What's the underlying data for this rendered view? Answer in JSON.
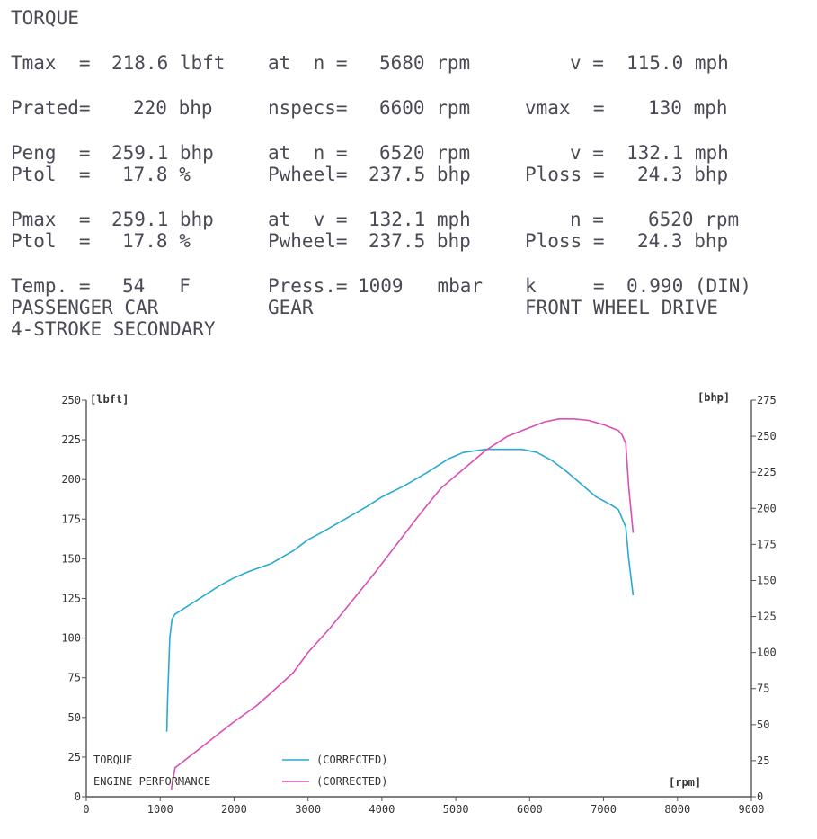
{
  "header": {
    "title": "TORQUE",
    "rows": [
      [
        {
          "id": "tmax-label",
          "text": "Tmax  =",
          "x": 12,
          "y": 58
        },
        {
          "id": "tmax-value",
          "text": "218.6 lbft",
          "x": 124,
          "y": 58
        },
        {
          "id": "tmax-at-n-label",
          "text": "at  n =",
          "x": 298,
          "y": 58
        },
        {
          "id": "tmax-n-value",
          "text": "5680 rpm",
          "x": 422,
          "y": 58
        },
        {
          "id": "tmax-v-label",
          "text": "v =",
          "x": 634,
          "y": 58
        },
        {
          "id": "tmax-v-value",
          "text": "115.0 mph",
          "x": 697,
          "y": 58
        }
      ],
      [
        {
          "id": "prated-label",
          "text": "Prated=",
          "x": 12,
          "y": 108
        },
        {
          "id": "prated-value",
          "text": "220 bhp",
          "x": 148,
          "y": 108
        },
        {
          "id": "nspecs-label",
          "text": "nspecs=",
          "x": 298,
          "y": 108
        },
        {
          "id": "nspecs-value",
          "text": "6600 rpm",
          "x": 422,
          "y": 108
        },
        {
          "id": "vmax-label",
          "text": "vmax  =",
          "x": 584,
          "y": 108
        },
        {
          "id": "vmax-value",
          "text": "130 mph",
          "x": 721,
          "y": 108
        }
      ],
      [
        {
          "id": "peng-label",
          "text": "Peng  =",
          "x": 12,
          "y": 158
        },
        {
          "id": "peng-value",
          "text": "259.1 bhp",
          "x": 124,
          "y": 158
        },
        {
          "id": "peng-at-n-label",
          "text": "at  n =",
          "x": 298,
          "y": 158
        },
        {
          "id": "peng-n-value",
          "text": "6520 rpm",
          "x": 422,
          "y": 158
        },
        {
          "id": "peng-v-label",
          "text": "v =",
          "x": 634,
          "y": 158
        },
        {
          "id": "peng-v-value",
          "text": "132.1 mph",
          "x": 697,
          "y": 158
        }
      ],
      [
        {
          "id": "ptol1-label",
          "text": "Ptol  =",
          "x": 12,
          "y": 182
        },
        {
          "id": "ptol1-value",
          "text": "17.8 %",
          "x": 136,
          "y": 182
        },
        {
          "id": "pwheel1-label",
          "text": "Pwheel=",
          "x": 298,
          "y": 182
        },
        {
          "id": "pwheel1-value",
          "text": "237.5 bhp",
          "x": 410,
          "y": 182
        },
        {
          "id": "ploss1-label",
          "text": "Ploss =",
          "x": 584,
          "y": 182
        },
        {
          "id": "ploss1-value",
          "text": "24.3 bhp",
          "x": 709,
          "y": 182
        }
      ],
      [
        {
          "id": "pmax-label",
          "text": "Pmax  =",
          "x": 12,
          "y": 232
        },
        {
          "id": "pmax-value",
          "text": "259.1 bhp",
          "x": 124,
          "y": 232
        },
        {
          "id": "pmax-at-v-label",
          "text": "at  v =",
          "x": 298,
          "y": 232
        },
        {
          "id": "pmax-v-value",
          "text": "132.1 mph",
          "x": 410,
          "y": 232
        },
        {
          "id": "pmax-n-label",
          "text": "n =",
          "x": 634,
          "y": 232
        },
        {
          "id": "pmax-n-value",
          "text": "6520 rpm",
          "x": 721,
          "y": 232
        }
      ],
      [
        {
          "id": "ptol2-label",
          "text": "Ptol  =",
          "x": 12,
          "y": 256
        },
        {
          "id": "ptol2-value",
          "text": "17.8 %",
          "x": 136,
          "y": 256
        },
        {
          "id": "pwheel2-label",
          "text": "Pwheel=",
          "x": 298,
          "y": 256
        },
        {
          "id": "pwheel2-value",
          "text": "237.5 bhp",
          "x": 410,
          "y": 256
        },
        {
          "id": "ploss2-label",
          "text": "Ploss =",
          "x": 584,
          "y": 256
        },
        {
          "id": "ploss2-value",
          "text": "24.3 bhp",
          "x": 709,
          "y": 256
        }
      ],
      [
        {
          "id": "temp-label",
          "text": "Temp. =",
          "x": 12,
          "y": 306
        },
        {
          "id": "temp-value",
          "text": "54   F",
          "x": 136,
          "y": 306
        },
        {
          "id": "press-label",
          "text": "Press.=",
          "x": 298,
          "y": 306
        },
        {
          "id": "press-value",
          "text": "1009   mbar",
          "x": 398,
          "y": 306
        },
        {
          "id": "k-label",
          "text": "k     =",
          "x": 584,
          "y": 306
        },
        {
          "id": "k-value",
          "text": "0.990 (DIN)",
          "x": 697,
          "y": 306
        }
      ],
      [
        {
          "id": "vehicle-type",
          "text": "PASSENGER CAR",
          "x": 12,
          "y": 330
        },
        {
          "id": "gear-label",
          "text": "GEAR",
          "x": 298,
          "y": 330
        },
        {
          "id": "drive-type",
          "text": "FRONT WHEEL DRIVE",
          "x": 584,
          "y": 330
        }
      ],
      [
        {
          "id": "engine-type",
          "text": "4-STROKE SECONDARY",
          "x": 12,
          "y": 354
        }
      ]
    ]
  },
  "chart_data": {
    "type": "line",
    "xlabel": "[rpm]",
    "ylabel_left": "[lbft]",
    "ylabel_right": "[bhp]",
    "xlim": [
      0,
      9000
    ],
    "ylim_left": [
      0,
      250
    ],
    "ylim_right": [
      0,
      275
    ],
    "x_ticks": [
      "0",
      "1000",
      "2000",
      "3000",
      "4000",
      "5000",
      "6000",
      "7000",
      "8000",
      "9000"
    ],
    "y_ticks_left": [
      "0",
      "25",
      "50",
      "75",
      "100",
      "125",
      "150",
      "175",
      "200",
      "225",
      "250"
    ],
    "y_ticks_right": [
      "0",
      "25",
      "50",
      "75",
      "100",
      "125",
      "150",
      "175",
      "200",
      "225",
      "250",
      "275"
    ],
    "grid": false,
    "legend": [
      {
        "label": "TORQUE",
        "status": "(CORRECTED)",
        "color": "#2aa9d2"
      },
      {
        "label": "ENGINE PERFORMANCE",
        "status": "(CORRECTED)",
        "color": "#d94fb5"
      }
    ],
    "series": [
      {
        "name": "TORQUE",
        "axis": "left",
        "color": "#2aa9d2",
        "x": [
          1090,
          1100,
          1130,
          1160,
          1200,
          1300,
          1500,
          1800,
          2000,
          2200,
          2500,
          2800,
          3000,
          3200,
          3500,
          3800,
          4000,
          4300,
          4600,
          4900,
          5100,
          5400,
          5700,
          5900,
          6100,
          6300,
          6500,
          6700,
          6900,
          7100,
          7200,
          7300,
          7340,
          7400
        ],
        "y": [
          41,
          60,
          100,
          112,
          115,
          118,
          124,
          133,
          138,
          142,
          147,
          155,
          162,
          167,
          175,
          183,
          189,
          196,
          204,
          213,
          217,
          219,
          219,
          219,
          217,
          212,
          205,
          197,
          189,
          184,
          181,
          170,
          150,
          127
        ]
      },
      {
        "name": "ENGINE PERFORMANCE",
        "axis": "right",
        "color": "#d94fb5",
        "x": [
          1150,
          1200,
          1300,
          1500,
          1800,
          2000,
          2300,
          2500,
          2800,
          3000,
          3300,
          3600,
          3900,
          4200,
          4500,
          4800,
          5100,
          5400,
          5700,
          6000,
          6200,
          6400,
          6600,
          6800,
          7000,
          7200,
          7250,
          7300,
          7340,
          7400
        ],
        "y": [
          5,
          20,
          24,
          32,
          44,
          52,
          63,
          72,
          86,
          100,
          117,
          136,
          155,
          175,
          195,
          214,
          227,
          240,
          250,
          256,
          260,
          262,
          262,
          261,
          258,
          254,
          251,
          245,
          215,
          183
        ]
      }
    ]
  }
}
